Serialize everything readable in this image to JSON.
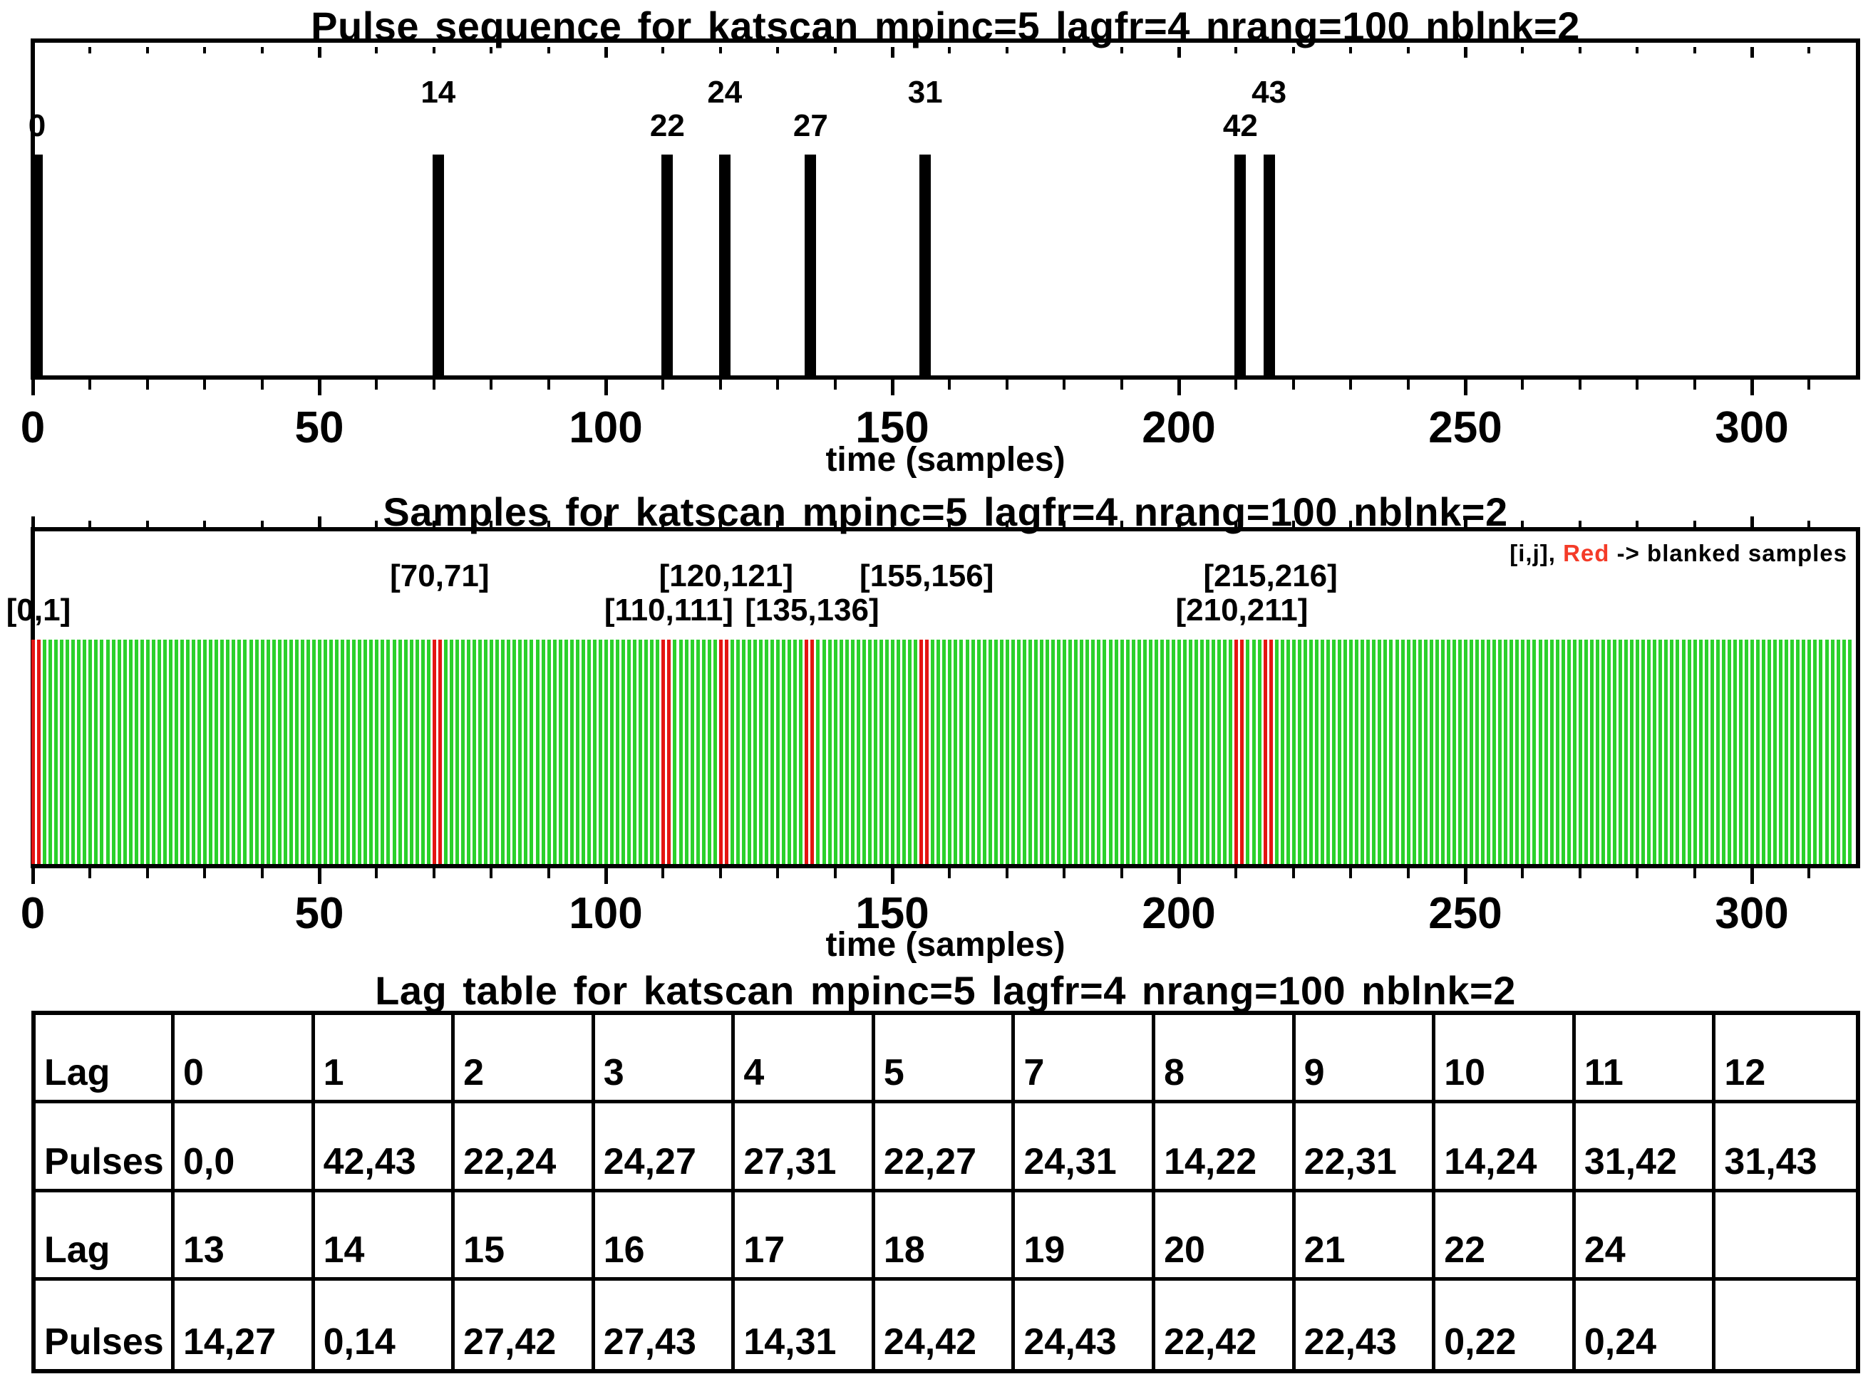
{
  "colors": {
    "sample_green": "#2BD12B",
    "blanked_red": "#E41512",
    "legend_red": "#F43B28",
    "ink": "#000000",
    "background": "#FFFFFF"
  },
  "chart_data": [
    {
      "type": "bar",
      "id": "pulse-sequence",
      "title": "Pulse sequence for katscan mpinc=5 lagfr=4 nrang=100 nblnk=2",
      "xlabel": "time (samples)",
      "xlim": [
        0,
        317
      ],
      "xticks": [
        0,
        50,
        100,
        150,
        200,
        250,
        300
      ],
      "minor_tick_step": 10,
      "grid": false,
      "pulses": [
        {
          "pulse": "0",
          "time": 0,
          "label_row": "lower"
        },
        {
          "pulse": "14",
          "time": 70,
          "label_row": "upper"
        },
        {
          "pulse": "22",
          "time": 110,
          "label_row": "lower"
        },
        {
          "pulse": "24",
          "time": 120,
          "label_row": "upper"
        },
        {
          "pulse": "27",
          "time": 135,
          "label_row": "lower"
        },
        {
          "pulse": "31",
          "time": 155,
          "label_row": "upper"
        },
        {
          "pulse": "42",
          "time": 210,
          "label_row": "lower"
        },
        {
          "pulse": "43",
          "time": 215,
          "label_row": "upper"
        }
      ]
    },
    {
      "type": "bar",
      "id": "samples",
      "title": "Samples for katscan mpinc=5 lagfr=4 nrang=100 nblnk=2",
      "xlabel": "time (samples)",
      "xlim": [
        0,
        317
      ],
      "xticks": [
        0,
        50,
        100,
        150,
        200,
        250,
        300
      ],
      "minor_tick_step": 10,
      "n_samples": 318,
      "blanked_samples": [
        0,
        1,
        70,
        71,
        110,
        111,
        120,
        121,
        135,
        136,
        155,
        156,
        210,
        211,
        215,
        216
      ],
      "pair_labels": [
        {
          "text": "[0,1]",
          "first": 0,
          "row": "lower"
        },
        {
          "text": "[70,71]",
          "first": 70,
          "row": "upper"
        },
        {
          "text": "[110,111]",
          "first": 110,
          "row": "lower"
        },
        {
          "text": "[120,121]",
          "first": 120,
          "row": "upper"
        },
        {
          "text": "[135,136]",
          "first": 135,
          "row": "lower"
        },
        {
          "text": "[155,156]",
          "first": 155,
          "row": "upper"
        },
        {
          "text": "[210,211]",
          "first": 210,
          "row": "lower"
        },
        {
          "text": "[215,216]",
          "first": 215,
          "row": "upper"
        }
      ],
      "legend": {
        "prefix": "[i,j], ",
        "highlight": "Red",
        "suffix": " -> blanked samples"
      }
    },
    {
      "type": "table",
      "id": "lag-table",
      "title": "Lag table for katscan mpinc=5 lagfr=4 nrang=100 nblnk=2",
      "rows": [
        [
          "Lag",
          "0",
          "1",
          "2",
          "3",
          "4",
          "5",
          "7",
          "8",
          "9",
          "10",
          "11",
          "12"
        ],
        [
          "Pulses",
          "0,0",
          "42,43",
          "22,24",
          "24,27",
          "27,31",
          "22,27",
          "24,31",
          "14,22",
          "22,31",
          "14,24",
          "31,42",
          "31,43"
        ],
        [
          "Lag",
          "13",
          "14",
          "15",
          "16",
          "17",
          "18",
          "19",
          "20",
          "21",
          "22",
          "24",
          ""
        ],
        [
          "Pulses",
          "14,27",
          "0,14",
          "27,42",
          "27,43",
          "14,31",
          "24,42",
          "24,43",
          "22,42",
          "22,43",
          "0,22",
          "0,24",
          ""
        ]
      ]
    }
  ]
}
